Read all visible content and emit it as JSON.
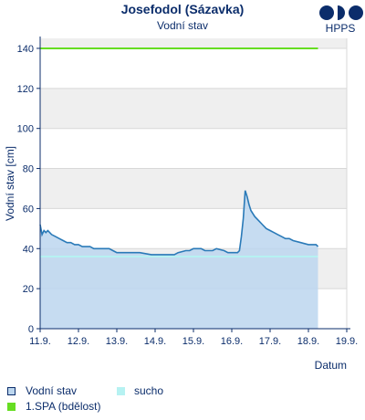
{
  "header": {
    "title": "Josefodol (Sázavka)",
    "subtitle": "Vodní stav",
    "logo_text": "HPPS"
  },
  "colors": {
    "water_line": "#2a7ab8",
    "water_fill": "#bcd6ee",
    "drought_line": "#b6f2f2",
    "spa_line": "#66dd22",
    "band": "#efefef",
    "axis": "#0b2d6b",
    "logo": "#0b2d6b"
  },
  "legend": {
    "water": "Vodní stav",
    "drought": "sucho",
    "spa": "1.SPA (bdělost)"
  },
  "chart_data": {
    "type": "line",
    "xlabel": "Datum",
    "ylabel": "Vodní stav [cm]",
    "ylim": [
      0,
      145
    ],
    "xlim": [
      0,
      8
    ],
    "yticks": [
      0,
      20,
      40,
      60,
      80,
      100,
      120,
      140
    ],
    "xtick_labels": [
      "11.9.",
      "12.9.",
      "13.9.",
      "14.9.",
      "15.9.",
      "16.9.",
      "17.9.",
      "18.9.",
      "19.9."
    ],
    "grid": "alternating horizontal bands",
    "series": [
      {
        "name": "Vodní stav",
        "type": "area",
        "x": [
          0,
          0.05,
          0.1,
          0.15,
          0.2,
          0.25,
          0.3,
          0.4,
          0.5,
          0.6,
          0.7,
          0.8,
          0.9,
          1.0,
          1.1,
          1.2,
          1.3,
          1.4,
          1.5,
          1.6,
          1.7,
          1.8,
          1.9,
          2.0,
          2.3,
          2.6,
          2.9,
          3.0,
          3.3,
          3.5,
          3.6,
          3.8,
          3.9,
          4.0,
          4.2,
          4.3,
          4.5,
          4.6,
          4.8,
          4.9,
          5.0,
          5.1,
          5.15,
          5.2,
          5.25,
          5.3,
          5.35,
          5.4,
          5.45,
          5.5,
          5.6,
          5.7,
          5.8,
          5.9,
          6.0,
          6.1,
          6.2,
          6.3,
          6.4,
          6.5,
          6.6,
          6.8,
          7.0,
          7.2,
          7.25
        ],
        "values": [
          52,
          47,
          49,
          48,
          49,
          48,
          47,
          46,
          45,
          44,
          43,
          43,
          42,
          42,
          41,
          41,
          41,
          40,
          40,
          40,
          40,
          40,
          39,
          38,
          38,
          38,
          37,
          37,
          37,
          37,
          38,
          39,
          39,
          40,
          40,
          39,
          39,
          40,
          39,
          38,
          38,
          38,
          38,
          39,
          46,
          55,
          69,
          66,
          62,
          59,
          56,
          54,
          52,
          50,
          49,
          48,
          47,
          46,
          45,
          45,
          44,
          43,
          42,
          42,
          41
        ]
      },
      {
        "name": "sucho",
        "type": "line",
        "x": [
          0,
          7.25
        ],
        "values": [
          36,
          36
        ]
      },
      {
        "name": "1.SPA (bdělost)",
        "type": "line",
        "x": [
          0,
          7.25
        ],
        "values": [
          140,
          140
        ]
      }
    ]
  }
}
